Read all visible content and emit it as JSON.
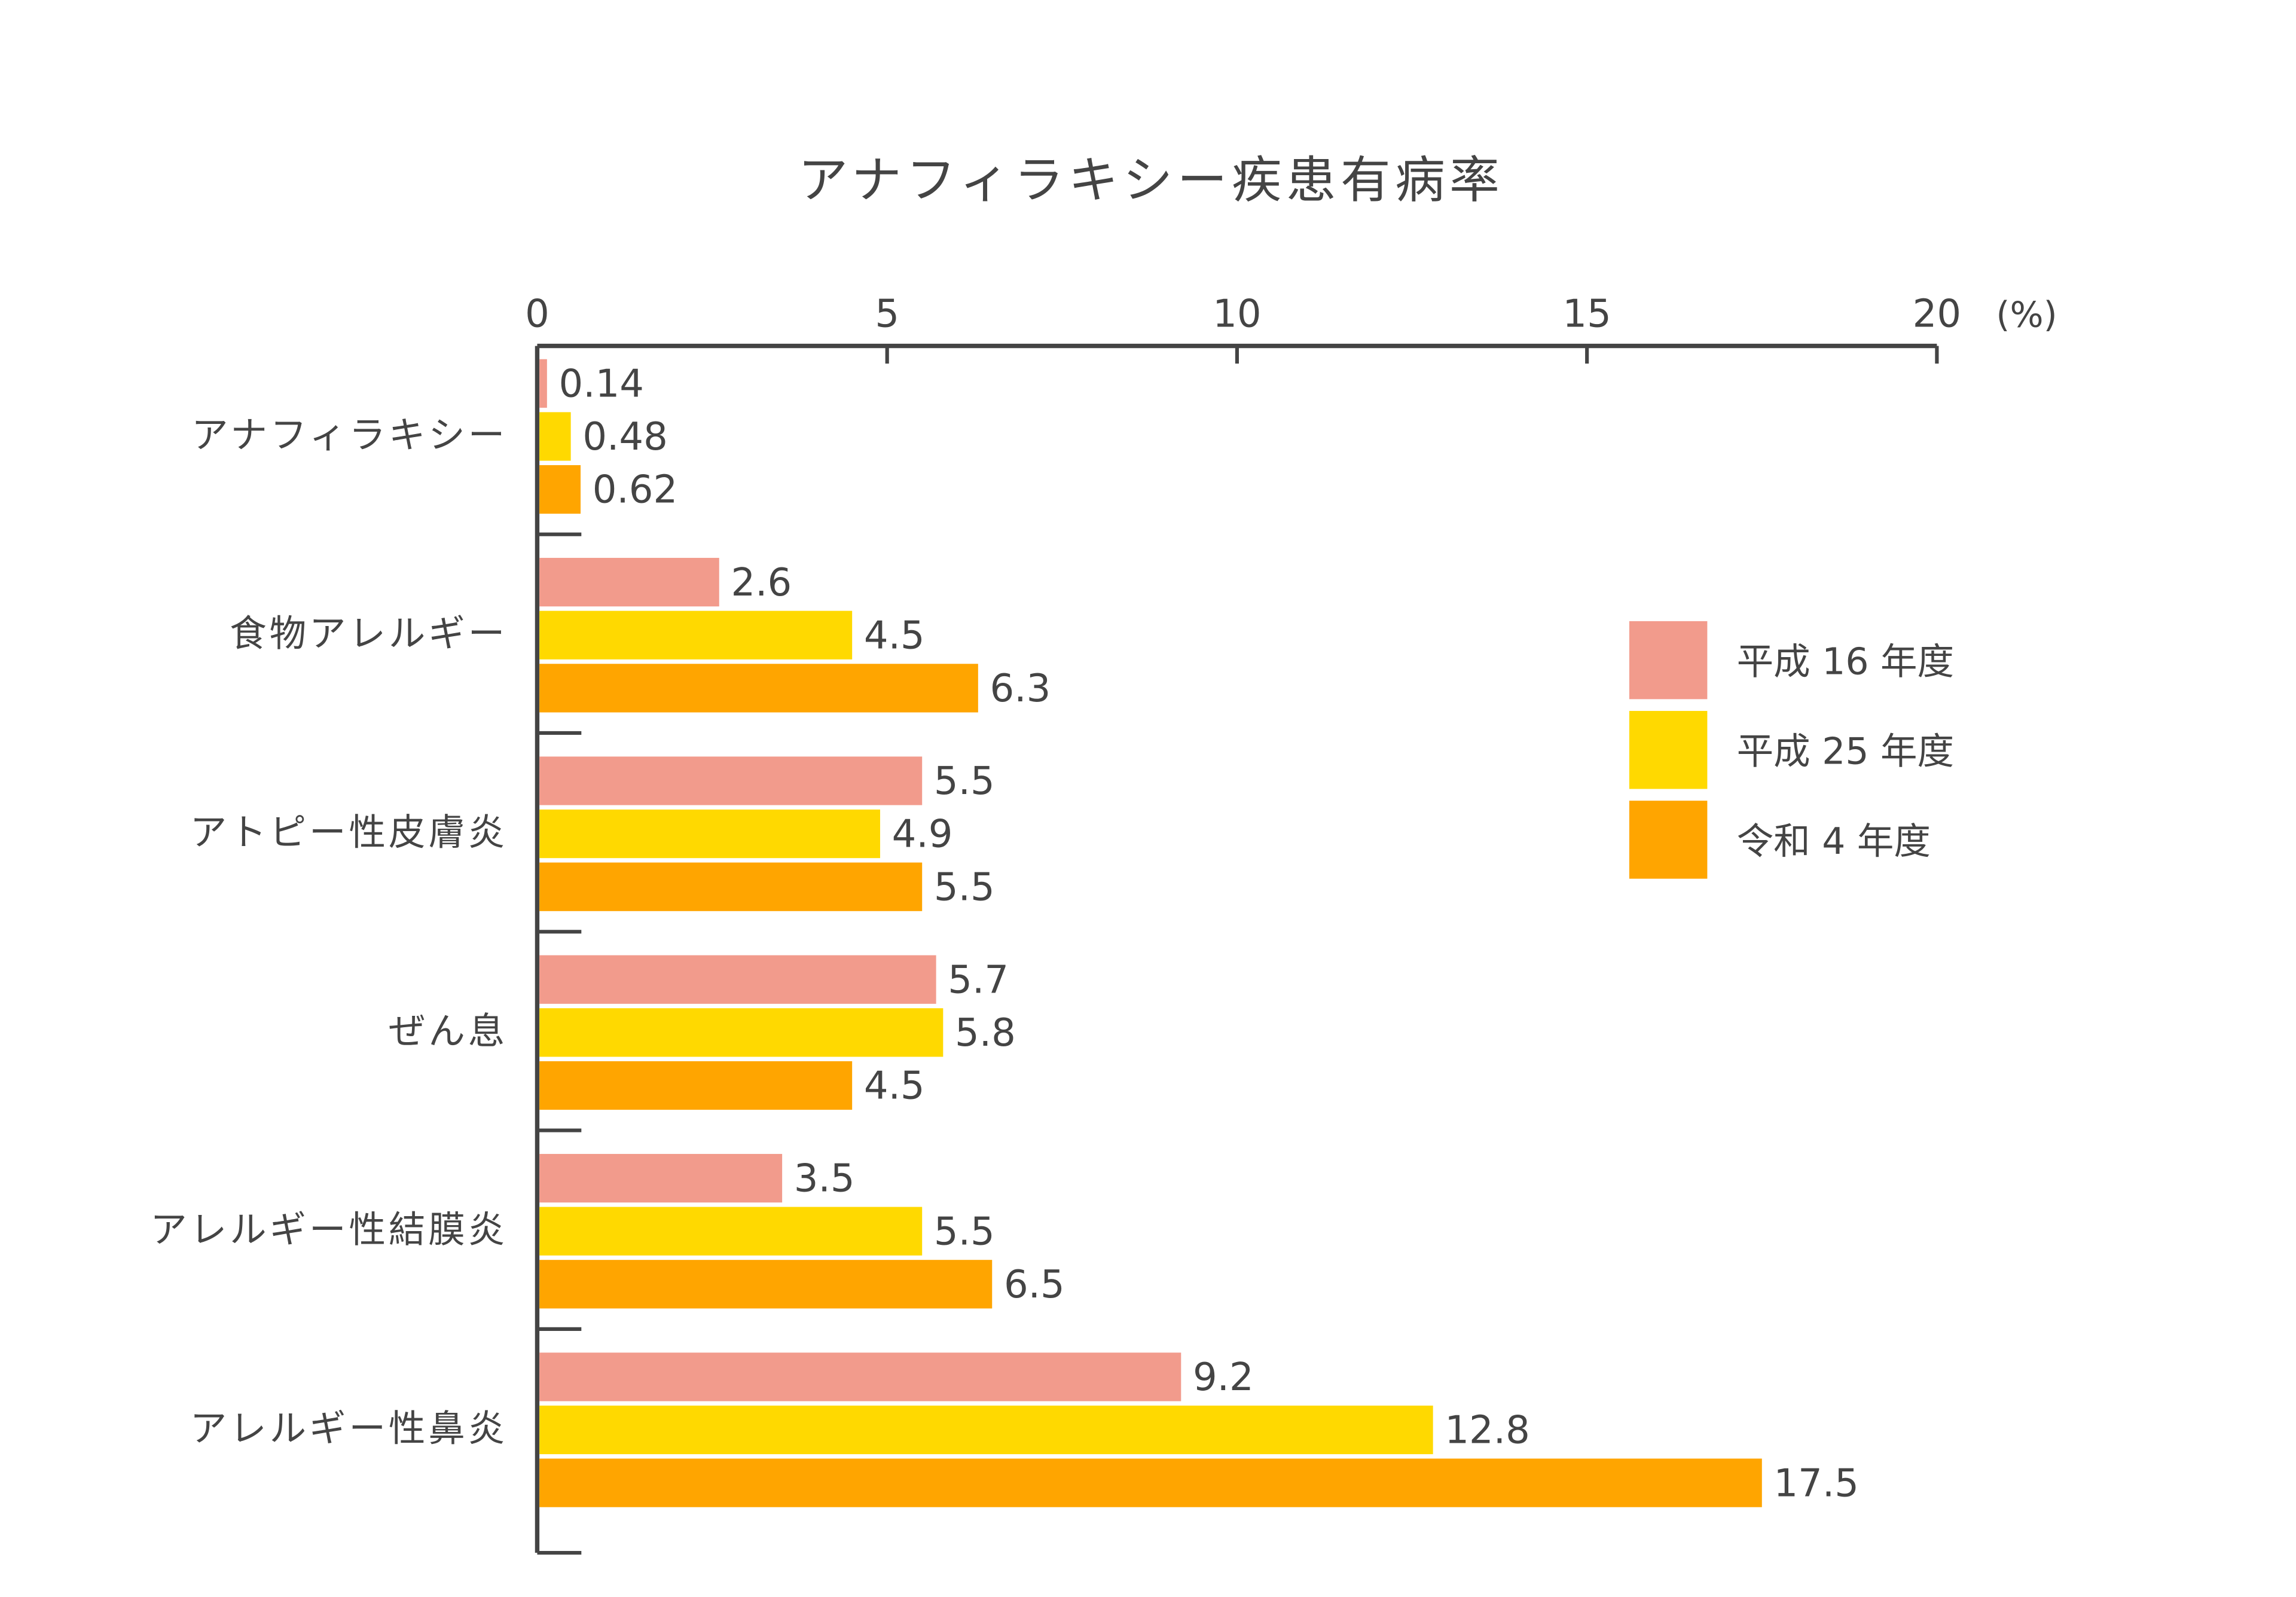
{
  "chart_data": {
    "type": "bar",
    "orientation": "horizontal",
    "title": "アナフィラキシー疾患有病率",
    "unit_label": "(%)",
    "xlim": [
      0,
      20
    ],
    "xticks": [
      "0",
      "5",
      "10",
      "15",
      "20"
    ],
    "grid": false,
    "legend_position": "right",
    "categories": [
      "アナフィラキシー",
      "食物アレルギー",
      "アトピー性皮膚炎",
      "ぜん息",
      "アレルギー性結膜炎",
      "アレルギー性鼻炎"
    ],
    "series": [
      {
        "name": "平成 16 年度",
        "color": "#F29B8C",
        "values": [
          0.14,
          2.6,
          5.5,
          5.7,
          3.5,
          9.2
        ],
        "labels": [
          "0.14",
          "2.6",
          "5.5",
          "5.7",
          "3.5",
          "9.2"
        ]
      },
      {
        "name": "平成 25 年度",
        "color": "#FFD900",
        "values": [
          0.48,
          4.5,
          4.9,
          5.8,
          5.5,
          12.8
        ],
        "labels": [
          "0.48",
          "4.5",
          "4.9",
          "5.8",
          "5.5",
          "12.8"
        ]
      },
      {
        "name": "令和 4 年度",
        "color": "#FFA500",
        "values": [
          0.62,
          6.3,
          5.5,
          4.5,
          6.5,
          17.5
        ],
        "labels": [
          "0.62",
          "6.3",
          "5.5",
          "4.5",
          "6.5",
          "17.5"
        ]
      }
    ]
  }
}
